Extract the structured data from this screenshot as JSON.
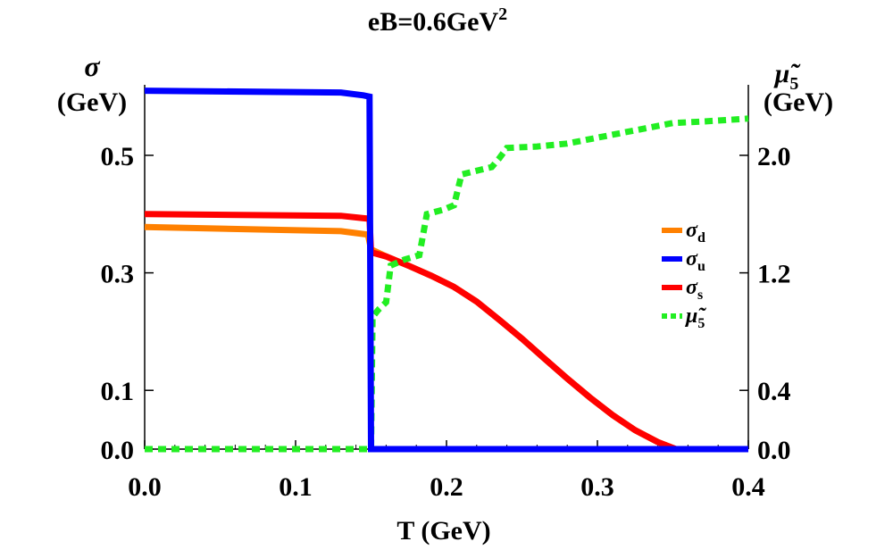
{
  "chart_data": {
    "type": "line",
    "title": "eB=0.6GeV",
    "title_superscript": "2",
    "xlabel": "T (GeV)",
    "ylabel_symbol": "σ",
    "ylabel_unit": "(GeV)",
    "y2label_symbol": "μ̃",
    "y2label_subscript": "5",
    "y2label_unit": "(GeV)",
    "xlim": [
      0,
      0.4
    ],
    "ylim": [
      0,
      0.62
    ],
    "y2lim": [
      0,
      2.48
    ],
    "x_ticks": [
      {
        "value": 0.0,
        "label": "0.0"
      },
      {
        "value": 0.1,
        "label": "0.1"
      },
      {
        "value": 0.2,
        "label": "0.2"
      },
      {
        "value": 0.3,
        "label": "0.3"
      },
      {
        "value": 0.4,
        "label": "0.4"
      }
    ],
    "y_ticks": [
      {
        "value": 0.0,
        "label": "0.0"
      },
      {
        "value": 0.1,
        "label": "0.1"
      },
      {
        "value": 0.3,
        "label": "0.3"
      },
      {
        "value": 0.5,
        "label": "0.5"
      }
    ],
    "y2_ticks": [
      {
        "value": 0.0,
        "label": "0.0"
      },
      {
        "value": 0.4,
        "label": "0.4"
      },
      {
        "value": 1.2,
        "label": "1.2"
      },
      {
        "value": 2.0,
        "label": "2.0"
      }
    ],
    "legend_position": "center-right",
    "series": [
      {
        "name": "σd",
        "symbol": "σ",
        "sub": "d",
        "axis": "left",
        "color": "#ff8000",
        "dashed": false,
        "points": [
          [
            0,
            0.378
          ],
          [
            0.13,
            0.371
          ],
          [
            0.148,
            0.365
          ],
          [
            0.15,
            0.34
          ],
          [
            0.16,
            0.328
          ],
          [
            0.175,
            0.312
          ],
          [
            0.19,
            0.295
          ],
          [
            0.205,
            0.276
          ],
          [
            0.22,
            0.251
          ],
          [
            0.235,
            0.22
          ],
          [
            0.25,
            0.188
          ],
          [
            0.265,
            0.154
          ],
          [
            0.28,
            0.12
          ],
          [
            0.295,
            0.088
          ],
          [
            0.31,
            0.058
          ],
          [
            0.325,
            0.032
          ],
          [
            0.34,
            0.012
          ],
          [
            0.352,
            0.0
          ],
          [
            0.4,
            0.0
          ]
        ]
      },
      {
        "name": "σu",
        "symbol": "σ",
        "sub": "u",
        "axis": "left",
        "color": "#0000ff",
        "dashed": false,
        "points": [
          [
            0,
            0.61
          ],
          [
            0.13,
            0.607
          ],
          [
            0.145,
            0.602
          ],
          [
            0.149,
            0.6
          ],
          [
            0.15,
            0.0
          ],
          [
            0.4,
            0.0
          ]
        ]
      },
      {
        "name": "σs",
        "symbol": "σ",
        "sub": "s",
        "axis": "left",
        "color": "#ff0000",
        "dashed": false,
        "points": [
          [
            0,
            0.4
          ],
          [
            0.13,
            0.397
          ],
          [
            0.145,
            0.393
          ],
          [
            0.149,
            0.392
          ],
          [
            0.15,
            0.335
          ],
          [
            0.16,
            0.328
          ],
          [
            0.175,
            0.312
          ],
          [
            0.19,
            0.295
          ],
          [
            0.205,
            0.276
          ],
          [
            0.22,
            0.251
          ],
          [
            0.235,
            0.22
          ],
          [
            0.25,
            0.188
          ],
          [
            0.265,
            0.154
          ],
          [
            0.28,
            0.12
          ],
          [
            0.295,
            0.088
          ],
          [
            0.31,
            0.058
          ],
          [
            0.325,
            0.032
          ],
          [
            0.34,
            0.012
          ],
          [
            0.352,
            0.0
          ],
          [
            0.4,
            0.0
          ]
        ]
      },
      {
        "name": "μ̃5",
        "symbol": "μ̃",
        "sub": "5",
        "axis": "right",
        "color": "#22ee22",
        "dashed": true,
        "points": [
          [
            0,
            0.0
          ],
          [
            0.15,
            0.0
          ],
          [
            0.15,
            0.0
          ],
          [
            0.151,
            0.9
          ],
          [
            0.155,
            0.95
          ],
          [
            0.16,
            1.0
          ],
          [
            0.163,
            1.25
          ],
          [
            0.172,
            1.29
          ],
          [
            0.182,
            1.32
          ],
          [
            0.187,
            1.6
          ],
          [
            0.198,
            1.63
          ],
          [
            0.205,
            1.66
          ],
          [
            0.21,
            1.87
          ],
          [
            0.222,
            1.9
          ],
          [
            0.23,
            1.92
          ],
          [
            0.235,
            1.98
          ],
          [
            0.24,
            2.05
          ],
          [
            0.26,
            2.06
          ],
          [
            0.28,
            2.08
          ],
          [
            0.3,
            2.12
          ],
          [
            0.32,
            2.16
          ],
          [
            0.34,
            2.2
          ],
          [
            0.35,
            2.22
          ],
          [
            0.37,
            2.23
          ],
          [
            0.385,
            2.24
          ],
          [
            0.4,
            2.25
          ]
        ]
      }
    ]
  }
}
